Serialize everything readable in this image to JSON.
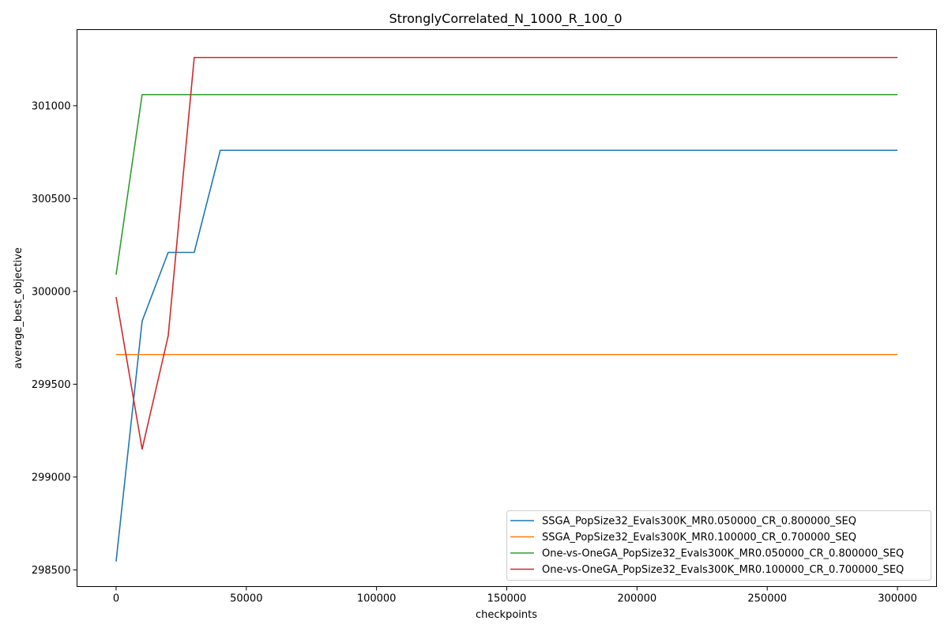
{
  "chart_data": {
    "type": "line",
    "title": "StronglyCorrelated_N_1000_R_100_0",
    "xlabel": "checkpoints",
    "ylabel": "average_best_objective",
    "xlim": [
      -15000,
      315000
    ],
    "ylim": [
      298410,
      301410
    ],
    "xticks": [
      0,
      50000,
      100000,
      150000,
      200000,
      250000,
      300000
    ],
    "yticks": [
      298500,
      299000,
      299500,
      300000,
      300500,
      301000
    ],
    "grid": false,
    "legend_position": "lower-right",
    "series": [
      {
        "name": "SSGA_PopSize32_Evals300K_MR0.050000_CR_0.800000_SEQ",
        "color": "#1f77b4",
        "x": [
          0,
          10000,
          20000,
          30000,
          40000,
          50000,
          300000
        ],
        "y": [
          298545,
          299840,
          300210,
          300210,
          300760,
          300760,
          300760
        ]
      },
      {
        "name": "SSGA_PopSize32_Evals300K_MR0.100000_CR_0.700000_SEQ",
        "color": "#ff7f0e",
        "x": [
          0,
          10000,
          300000
        ],
        "y": [
          299660,
          299660,
          299660
        ]
      },
      {
        "name": "One-vs-OneGA_PopSize32_Evals300K_MR0.050000_CR_0.800000_SEQ",
        "color": "#2ca02c",
        "x": [
          0,
          10000,
          20000,
          300000
        ],
        "y": [
          300090,
          301060,
          301060,
          301060
        ]
      },
      {
        "name": "One-vs-OneGA_PopSize32_Evals300K_MR0.100000_CR_0.700000_SEQ",
        "color": "#d62728",
        "x": [
          0,
          10000,
          20000,
          30000,
          40000,
          300000
        ],
        "y": [
          299970,
          299150,
          299760,
          301260,
          301260,
          301260
        ]
      }
    ]
  }
}
